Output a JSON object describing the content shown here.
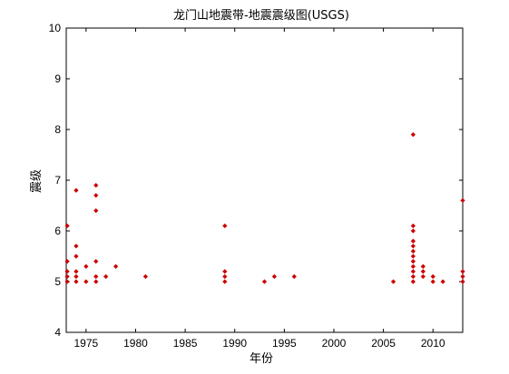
{
  "chart_data": {
    "type": "scatter",
    "title": "龙门山地震带-地震震级图(USGS)",
    "xlabel": "年份",
    "ylabel": "震级",
    "xlim": [
      1973,
      2013
    ],
    "ylim": [
      4,
      10
    ],
    "xticks": [
      1975,
      1980,
      1985,
      1990,
      1995,
      2000,
      2005,
      2010
    ],
    "yticks": [
      4,
      5,
      6,
      7,
      8,
      9,
      10
    ],
    "xtick_labels": [
      "1975",
      "1980",
      "1985",
      "1990",
      "1995",
      "2000",
      "2005",
      "2010"
    ],
    "ytick_labels": [
      "4",
      "5",
      "6",
      "7",
      "8",
      "9",
      "10"
    ],
    "grid": false,
    "marker_color": "#cc0000",
    "points": [
      {
        "x": 1973.1,
        "y": 5.0
      },
      {
        "x": 1973.1,
        "y": 5.1
      },
      {
        "x": 1973.1,
        "y": 5.2
      },
      {
        "x": 1973.1,
        "y": 5.4
      },
      {
        "x": 1973.1,
        "y": 6.1
      },
      {
        "x": 1974.0,
        "y": 5.0
      },
      {
        "x": 1974.0,
        "y": 5.1
      },
      {
        "x": 1974.0,
        "y": 5.2
      },
      {
        "x": 1974.0,
        "y": 5.5
      },
      {
        "x": 1974.0,
        "y": 5.7
      },
      {
        "x": 1974.0,
        "y": 6.8
      },
      {
        "x": 1975.0,
        "y": 5.0
      },
      {
        "x": 1975.0,
        "y": 5.3
      },
      {
        "x": 1976.0,
        "y": 5.0
      },
      {
        "x": 1976.0,
        "y": 5.1
      },
      {
        "x": 1976.0,
        "y": 5.4
      },
      {
        "x": 1976.0,
        "y": 6.4
      },
      {
        "x": 1976.0,
        "y": 6.7
      },
      {
        "x": 1976.0,
        "y": 6.9
      },
      {
        "x": 1977.0,
        "y": 5.1
      },
      {
        "x": 1978.0,
        "y": 5.3
      },
      {
        "x": 1981.0,
        "y": 5.1
      },
      {
        "x": 1989.0,
        "y": 5.0
      },
      {
        "x": 1989.0,
        "y": 5.1
      },
      {
        "x": 1989.0,
        "y": 5.2
      },
      {
        "x": 1989.0,
        "y": 6.1
      },
      {
        "x": 1993.0,
        "y": 5.0
      },
      {
        "x": 1994.0,
        "y": 5.1
      },
      {
        "x": 1996.0,
        "y": 5.1
      },
      {
        "x": 2006.0,
        "y": 5.0
      },
      {
        "x": 2008.0,
        "y": 5.0
      },
      {
        "x": 2008.0,
        "y": 5.1
      },
      {
        "x": 2008.0,
        "y": 5.2
      },
      {
        "x": 2008.0,
        "y": 5.3
      },
      {
        "x": 2008.0,
        "y": 5.4
      },
      {
        "x": 2008.0,
        "y": 5.5
      },
      {
        "x": 2008.0,
        "y": 5.6
      },
      {
        "x": 2008.0,
        "y": 5.7
      },
      {
        "x": 2008.0,
        "y": 5.8
      },
      {
        "x": 2008.0,
        "y": 6.0
      },
      {
        "x": 2008.0,
        "y": 6.1
      },
      {
        "x": 2008.0,
        "y": 7.9
      },
      {
        "x": 2009.0,
        "y": 5.1
      },
      {
        "x": 2009.0,
        "y": 5.2
      },
      {
        "x": 2009.0,
        "y": 5.3
      },
      {
        "x": 2010.0,
        "y": 5.0
      },
      {
        "x": 2010.0,
        "y": 5.1
      },
      {
        "x": 2011.0,
        "y": 5.0
      },
      {
        "x": 2013.0,
        "y": 5.0
      },
      {
        "x": 2013.0,
        "y": 5.1
      },
      {
        "x": 2013.0,
        "y": 5.2
      },
      {
        "x": 2013.0,
        "y": 6.6
      }
    ]
  }
}
